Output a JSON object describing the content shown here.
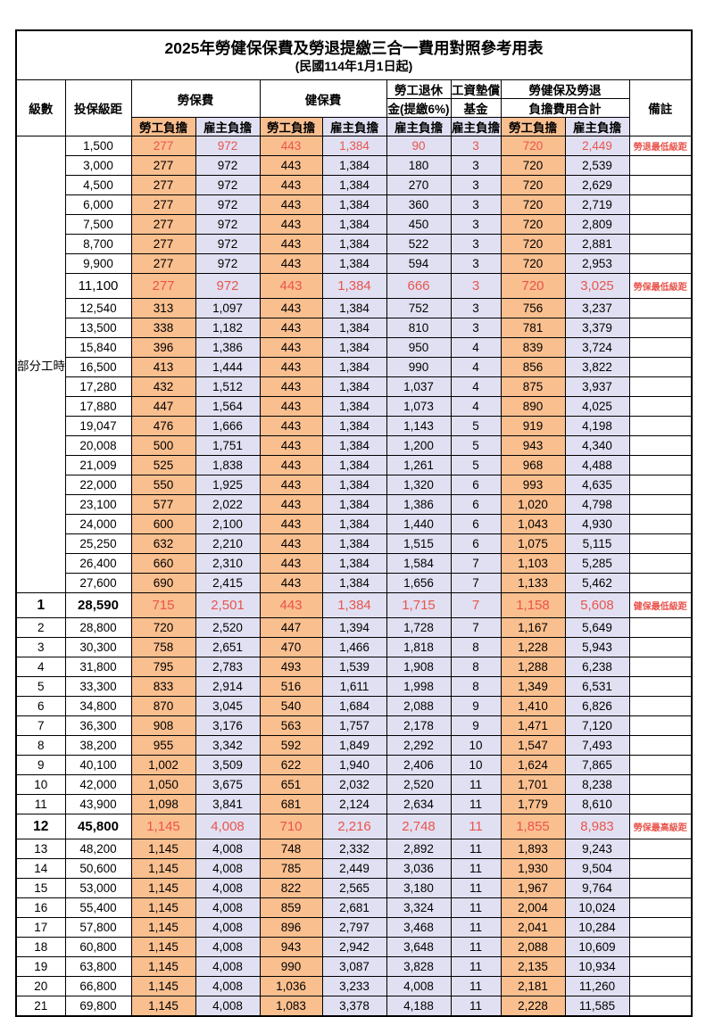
{
  "title": "2025年勞健保保費及勞退提繳三合一費用對照參考用表",
  "subtitle": "(民國114年1月1日起)",
  "colors": {
    "employee_col_bg": "#FABF8F",
    "employer_col_bg": "#E1E0F2",
    "highlight_red": "#E9544C",
    "border": "#000000"
  },
  "columns": {
    "level": "級數",
    "salary": "投保級距",
    "labor_ins": "勞保費",
    "health_ins": "健保費",
    "pension_line1": "勞工退休",
    "pension_line2": "金(提繳6%)",
    "wage_fund_line1": "工資墊償",
    "wage_fund_line2": "基金",
    "total_line1": "勞健保及勞退",
    "total_line2": "負擔費用合計",
    "note": "備註",
    "employee": "勞工負擔",
    "employer": "雇主負擔"
  },
  "section_label": "部分工時",
  "part_time_rowspan": 23,
  "rows": [
    {
      "level": "",
      "salary": "1,500",
      "values": [
        "277",
        "972",
        "443",
        "1,384",
        "90",
        "3",
        "720",
        "2,449"
      ],
      "note": "勞退最低級距",
      "red": true,
      "tall": false,
      "bold": false
    },
    {
      "level": "",
      "salary": "3,000",
      "values": [
        "277",
        "972",
        "443",
        "1,384",
        "180",
        "3",
        "720",
        "2,539"
      ],
      "note": "",
      "red": false,
      "tall": false,
      "bold": false
    },
    {
      "level": "",
      "salary": "4,500",
      "values": [
        "277",
        "972",
        "443",
        "1,384",
        "270",
        "3",
        "720",
        "2,629"
      ],
      "note": "",
      "red": false,
      "tall": false,
      "bold": false
    },
    {
      "level": "",
      "salary": "6,000",
      "values": [
        "277",
        "972",
        "443",
        "1,384",
        "360",
        "3",
        "720",
        "2,719"
      ],
      "note": "",
      "red": false,
      "tall": false,
      "bold": false
    },
    {
      "level": "",
      "salary": "7,500",
      "values": [
        "277",
        "972",
        "443",
        "1,384",
        "450",
        "3",
        "720",
        "2,809"
      ],
      "note": "",
      "red": false,
      "tall": false,
      "bold": false
    },
    {
      "level": "",
      "salary": "8,700",
      "values": [
        "277",
        "972",
        "443",
        "1,384",
        "522",
        "3",
        "720",
        "2,881"
      ],
      "note": "",
      "red": false,
      "tall": false,
      "bold": false
    },
    {
      "level": "",
      "salary": "9,900",
      "values": [
        "277",
        "972",
        "443",
        "1,384",
        "594",
        "3",
        "720",
        "2,953"
      ],
      "note": "",
      "red": false,
      "tall": false,
      "bold": false
    },
    {
      "level": "",
      "salary": "11,100",
      "values": [
        "277",
        "972",
        "443",
        "1,384",
        "666",
        "3",
        "720",
        "3,025"
      ],
      "note": "勞保最低級距",
      "red": true,
      "tall": true,
      "bold": false
    },
    {
      "level": "",
      "salary": "12,540",
      "values": [
        "313",
        "1,097",
        "443",
        "1,384",
        "752",
        "3",
        "756",
        "3,237"
      ],
      "note": "",
      "red": false,
      "tall": false,
      "bold": false
    },
    {
      "level": "",
      "salary": "13,500",
      "values": [
        "338",
        "1,182",
        "443",
        "1,384",
        "810",
        "3",
        "781",
        "3,379"
      ],
      "note": "",
      "red": false,
      "tall": false,
      "bold": false
    },
    {
      "level": "",
      "salary": "15,840",
      "values": [
        "396",
        "1,386",
        "443",
        "1,384",
        "950",
        "4",
        "839",
        "3,724"
      ],
      "note": "",
      "red": false,
      "tall": false,
      "bold": false
    },
    {
      "level": "",
      "salary": "16,500",
      "values": [
        "413",
        "1,444",
        "443",
        "1,384",
        "990",
        "4",
        "856",
        "3,822"
      ],
      "note": "",
      "red": false,
      "tall": false,
      "bold": false
    },
    {
      "level": "",
      "salary": "17,280",
      "values": [
        "432",
        "1,512",
        "443",
        "1,384",
        "1,037",
        "4",
        "875",
        "3,937"
      ],
      "note": "",
      "red": false,
      "tall": false,
      "bold": false
    },
    {
      "level": "",
      "salary": "17,880",
      "values": [
        "447",
        "1,564",
        "443",
        "1,384",
        "1,073",
        "4",
        "890",
        "4,025"
      ],
      "note": "",
      "red": false,
      "tall": false,
      "bold": false
    },
    {
      "level": "",
      "salary": "19,047",
      "values": [
        "476",
        "1,666",
        "443",
        "1,384",
        "1,143",
        "5",
        "919",
        "4,198"
      ],
      "note": "",
      "red": false,
      "tall": false,
      "bold": false
    },
    {
      "level": "",
      "salary": "20,008",
      "values": [
        "500",
        "1,751",
        "443",
        "1,384",
        "1,200",
        "5",
        "943",
        "4,340"
      ],
      "note": "",
      "red": false,
      "tall": false,
      "bold": false
    },
    {
      "level": "",
      "salary": "21,009",
      "values": [
        "525",
        "1,838",
        "443",
        "1,384",
        "1,261",
        "5",
        "968",
        "4,488"
      ],
      "note": "",
      "red": false,
      "tall": false,
      "bold": false
    },
    {
      "level": "",
      "salary": "22,000",
      "values": [
        "550",
        "1,925",
        "443",
        "1,384",
        "1,320",
        "6",
        "993",
        "4,635"
      ],
      "note": "",
      "red": false,
      "tall": false,
      "bold": false
    },
    {
      "level": "",
      "salary": "23,100",
      "values": [
        "577",
        "2,022",
        "443",
        "1,384",
        "1,386",
        "6",
        "1,020",
        "4,798"
      ],
      "note": "",
      "red": false,
      "tall": false,
      "bold": false
    },
    {
      "level": "",
      "salary": "24,000",
      "values": [
        "600",
        "2,100",
        "443",
        "1,384",
        "1,440",
        "6",
        "1,043",
        "4,930"
      ],
      "note": "",
      "red": false,
      "tall": false,
      "bold": false
    },
    {
      "level": "",
      "salary": "25,250",
      "values": [
        "632",
        "2,210",
        "443",
        "1,384",
        "1,515",
        "6",
        "1,075",
        "5,115"
      ],
      "note": "",
      "red": false,
      "tall": false,
      "bold": false
    },
    {
      "level": "",
      "salary": "26,400",
      "values": [
        "660",
        "2,310",
        "443",
        "1,384",
        "1,584",
        "7",
        "1,103",
        "5,285"
      ],
      "note": "",
      "red": false,
      "tall": false,
      "bold": false
    },
    {
      "level": "",
      "salary": "27,600",
      "values": [
        "690",
        "2,415",
        "443",
        "1,384",
        "1,656",
        "7",
        "1,133",
        "5,462"
      ],
      "note": "",
      "red": false,
      "tall": false,
      "bold": false
    },
    {
      "level": "1",
      "salary": "28,590",
      "values": [
        "715",
        "2,501",
        "443",
        "1,384",
        "1,715",
        "7",
        "1,158",
        "5,608"
      ],
      "note": "健保最低級距",
      "red": true,
      "tall": true,
      "bold": true
    },
    {
      "level": "2",
      "salary": "28,800",
      "values": [
        "720",
        "2,520",
        "447",
        "1,394",
        "1,728",
        "7",
        "1,167",
        "5,649"
      ],
      "note": "",
      "red": false,
      "tall": false,
      "bold": false
    },
    {
      "level": "3",
      "salary": "30,300",
      "values": [
        "758",
        "2,651",
        "470",
        "1,466",
        "1,818",
        "8",
        "1,228",
        "5,943"
      ],
      "note": "",
      "red": false,
      "tall": false,
      "bold": false
    },
    {
      "level": "4",
      "salary": "31,800",
      "values": [
        "795",
        "2,783",
        "493",
        "1,539",
        "1,908",
        "8",
        "1,288",
        "6,238"
      ],
      "note": "",
      "red": false,
      "tall": false,
      "bold": false
    },
    {
      "level": "5",
      "salary": "33,300",
      "values": [
        "833",
        "2,914",
        "516",
        "1,611",
        "1,998",
        "8",
        "1,349",
        "6,531"
      ],
      "note": "",
      "red": false,
      "tall": false,
      "bold": false
    },
    {
      "level": "6",
      "salary": "34,800",
      "values": [
        "870",
        "3,045",
        "540",
        "1,684",
        "2,088",
        "9",
        "1,410",
        "6,826"
      ],
      "note": "",
      "red": false,
      "tall": false,
      "bold": false
    },
    {
      "level": "7",
      "salary": "36,300",
      "values": [
        "908",
        "3,176",
        "563",
        "1,757",
        "2,178",
        "9",
        "1,471",
        "7,120"
      ],
      "note": "",
      "red": false,
      "tall": false,
      "bold": false
    },
    {
      "level": "8",
      "salary": "38,200",
      "values": [
        "955",
        "3,342",
        "592",
        "1,849",
        "2,292",
        "10",
        "1,547",
        "7,493"
      ],
      "note": "",
      "red": false,
      "tall": false,
      "bold": false
    },
    {
      "level": "9",
      "salary": "40,100",
      "values": [
        "1,002",
        "3,509",
        "622",
        "1,940",
        "2,406",
        "10",
        "1,624",
        "7,865"
      ],
      "note": "",
      "red": false,
      "tall": false,
      "bold": false
    },
    {
      "level": "10",
      "salary": "42,000",
      "values": [
        "1,050",
        "3,675",
        "651",
        "2,032",
        "2,520",
        "11",
        "1,701",
        "8,238"
      ],
      "note": "",
      "red": false,
      "tall": false,
      "bold": false
    },
    {
      "level": "11",
      "salary": "43,900",
      "values": [
        "1,098",
        "3,841",
        "681",
        "2,124",
        "2,634",
        "11",
        "1,779",
        "8,610"
      ],
      "note": "",
      "red": false,
      "tall": false,
      "bold": false
    },
    {
      "level": "12",
      "salary": "45,800",
      "values": [
        "1,145",
        "4,008",
        "710",
        "2,216",
        "2,748",
        "11",
        "1,855",
        "8,983"
      ],
      "note": "勞保最高級距",
      "red": true,
      "tall": true,
      "bold": true
    },
    {
      "level": "13",
      "salary": "48,200",
      "values": [
        "1,145",
        "4,008",
        "748",
        "2,332",
        "2,892",
        "11",
        "1,893",
        "9,243"
      ],
      "note": "",
      "red": false,
      "tall": false,
      "bold": false
    },
    {
      "level": "14",
      "salary": "50,600",
      "values": [
        "1,145",
        "4,008",
        "785",
        "2,449",
        "3,036",
        "11",
        "1,930",
        "9,504"
      ],
      "note": "",
      "red": false,
      "tall": false,
      "bold": false
    },
    {
      "level": "15",
      "salary": "53,000",
      "values": [
        "1,145",
        "4,008",
        "822",
        "2,565",
        "3,180",
        "11",
        "1,967",
        "9,764"
      ],
      "note": "",
      "red": false,
      "tall": false,
      "bold": false
    },
    {
      "level": "16",
      "salary": "55,400",
      "values": [
        "1,145",
        "4,008",
        "859",
        "2,681",
        "3,324",
        "11",
        "2,004",
        "10,024"
      ],
      "note": "",
      "red": false,
      "tall": false,
      "bold": false
    },
    {
      "level": "17",
      "salary": "57,800",
      "values": [
        "1,145",
        "4,008",
        "896",
        "2,797",
        "3,468",
        "11",
        "2,041",
        "10,284"
      ],
      "note": "",
      "red": false,
      "tall": false,
      "bold": false
    },
    {
      "level": "18",
      "salary": "60,800",
      "values": [
        "1,145",
        "4,008",
        "943",
        "2,942",
        "3,648",
        "11",
        "2,088",
        "10,609"
      ],
      "note": "",
      "red": false,
      "tall": false,
      "bold": false
    },
    {
      "level": "19",
      "salary": "63,800",
      "values": [
        "1,145",
        "4,008",
        "990",
        "3,087",
        "3,828",
        "11",
        "2,135",
        "10,934"
      ],
      "note": "",
      "red": false,
      "tall": false,
      "bold": false
    },
    {
      "level": "20",
      "salary": "66,800",
      "values": [
        "1,145",
        "4,008",
        "1,036",
        "3,233",
        "4,008",
        "11",
        "2,181",
        "11,260"
      ],
      "note": "",
      "red": false,
      "tall": false,
      "bold": false
    },
    {
      "level": "21",
      "salary": "69,800",
      "values": [
        "1,145",
        "4,008",
        "1,083",
        "3,378",
        "4,188",
        "11",
        "2,228",
        "11,585"
      ],
      "note": "",
      "red": false,
      "tall": false,
      "bold": false
    }
  ]
}
